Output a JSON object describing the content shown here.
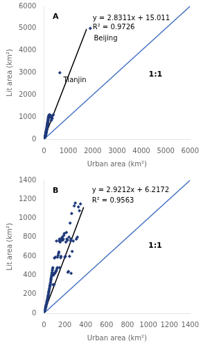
{
  "chart_data": [
    {
      "type": "scatter",
      "xlabel": "Urban area (km²)",
      "ylabel": "Lit area (km²)",
      "xlim": [
        0,
        6000
      ],
      "ylim": [
        0,
        6000
      ],
      "xticks": [
        0,
        1000,
        2000,
        3000,
        4000,
        5000,
        6000
      ],
      "yticks": [
        0,
        1000,
        2000,
        3000,
        4000,
        5000,
        6000
      ],
      "grid": false,
      "series": [
        {
          "type": "scatter",
          "color": "#1F3A7A",
          "marker": "diamond",
          "x": [
            20,
            25,
            30,
            35,
            38,
            42,
            45,
            48,
            52,
            55,
            58,
            60,
            63,
            65,
            68,
            70,
            73,
            75,
            78,
            80,
            85,
            88,
            90,
            92,
            95,
            98,
            100,
            103,
            105,
            108,
            110,
            115,
            118,
            120,
            125,
            128,
            130,
            133,
            135,
            138,
            140,
            143,
            145,
            148,
            150,
            155,
            160,
            165,
            170,
            175,
            180,
            185,
            190,
            200,
            210,
            220,
            230,
            240,
            250,
            260,
            270,
            280,
            300,
            320,
            340,
            360,
            380
          ],
          "values": [
            55,
            70,
            80,
            90,
            100,
            115,
            120,
            130,
            145,
            155,
            165,
            175,
            185,
            200,
            215,
            225,
            240,
            255,
            265,
            280,
            295,
            310,
            325,
            340,
            355,
            370,
            385,
            400,
            415,
            430,
            450,
            475,
            490,
            510,
            535,
            555,
            575,
            595,
            615,
            635,
            655,
            675,
            700,
            720,
            740,
            760,
            800,
            840,
            880,
            920,
            950,
            980,
            1010,
            1060,
            1080,
            1100,
            1100,
            1050,
            1090,
            1060,
            1020,
            980,
            850,
            910,
            940,
            1070,
            1100
          ]
        },
        {
          "type": "scatter",
          "color": "#1F3A7A",
          "marker": "diamond",
          "x": [
            1900,
            650
          ],
          "values": [
            5000,
            3000
          ]
        },
        {
          "type": "line",
          "color": "#000000",
          "line_style": "solid",
          "x": [
            0,
            1750
          ],
          "values": [
            15.011,
            4969.436
          ]
        },
        {
          "type": "line",
          "color": "#4472C4",
          "line_style": "solid",
          "x": [
            0,
            6000
          ],
          "values": [
            0,
            6000
          ]
        }
      ],
      "annotations": [
        {
          "text": "A",
          "x": 360,
          "y": 5700
        },
        {
          "text": "y = 2.8311x + 15.011",
          "x": 2000,
          "y": 5600
        },
        {
          "text": "R² = 0.9726",
          "x": 2000,
          "y": 5200
        },
        {
          "text": "Beijing",
          "x": 2050,
          "y": 4700
        },
        {
          "text": "Tianjin",
          "x": 800,
          "y": 2800
        },
        {
          "text": "1:1",
          "x": 4300,
          "y": 3100
        }
      ]
    },
    {
      "type": "scatter",
      "xlabel": "Urban area (km²)",
      "ylabel": "Lit area (km²)",
      "xlim": [
        0,
        1400
      ],
      "ylim": [
        0,
        1400
      ],
      "xticks": [
        0,
        200,
        400,
        600,
        800,
        1000,
        1200,
        1400
      ],
      "yticks": [
        0,
        200,
        400,
        600,
        800,
        1000,
        1200,
        1400
      ],
      "grid": false,
      "series": [
        {
          "type": "scatter",
          "color": "#1F3A7A",
          "marker": "diamond",
          "x": [
            5,
            8,
            10,
            12,
            15,
            17,
            18,
            20,
            22,
            25,
            27,
            28,
            30,
            32,
            35,
            37,
            38,
            40,
            42,
            44,
            45,
            47,
            50,
            52,
            55,
            57,
            58,
            60,
            63,
            65,
            67,
            68,
            70,
            72,
            75,
            77,
            80,
            82,
            85,
            87,
            90,
            92,
            95,
            97,
            100,
            105,
            108,
            110,
            115,
            118,
            120,
            125,
            128,
            130,
            135,
            140,
            143,
            145,
            148,
            150,
            155,
            158,
            160,
            163,
            165,
            170,
            175,
            180,
            185,
            190,
            195,
            200,
            205,
            210,
            215,
            220,
            225,
            230,
            235,
            240,
            245,
            250,
            255,
            258,
            260,
            265,
            270,
            280,
            290,
            300,
            310,
            320,
            330,
            340,
            350
          ],
          "values": [
            18,
            28,
            38,
            45,
            55,
            65,
            72,
            80,
            90,
            100,
            112,
            122,
            132,
            142,
            155,
            165,
            175,
            185,
            195,
            210,
            220,
            230,
            245,
            260,
            275,
            288,
            295,
            310,
            325,
            340,
            355,
            365,
            380,
            395,
            415,
            430,
            450,
            465,
            480,
            300,
            400,
            410,
            415,
            300,
            580,
            420,
            430,
            590,
            440,
            450,
            760,
            470,
            480,
            590,
            610,
            630,
            645,
            760,
            780,
            480,
            750,
            760,
            585,
            600,
            770,
            790,
            800,
            770,
            780,
            820,
            840,
            590,
            600,
            750,
            850,
            780,
            770,
            430,
            440,
            800,
            600,
            950,
            760,
            780,
            420,
            1050,
            650,
            760,
            1130,
            1160,
            780,
            800,
            1120,
            1080,
            1150
          ]
        },
        {
          "type": "line",
          "color": "#000000",
          "line_style": "solid",
          "x": [
            0,
            380
          ],
          "values": [
            6.2172,
            1116.2732
          ]
        },
        {
          "type": "line",
          "color": "#4472C4",
          "line_style": "solid",
          "x": [
            0,
            1400
          ],
          "values": [
            0,
            1400
          ]
        }
      ],
      "annotations": [
        {
          "text": "B",
          "x": 84,
          "y": 1330
        },
        {
          "text": "y = 2.9212x + 6.2172",
          "x": 460,
          "y": 1330
        },
        {
          "text": "R² = 0.9563",
          "x": 460,
          "y": 1220
        },
        {
          "text": "1:1",
          "x": 1000,
          "y": 750
        }
      ]
    }
  ]
}
